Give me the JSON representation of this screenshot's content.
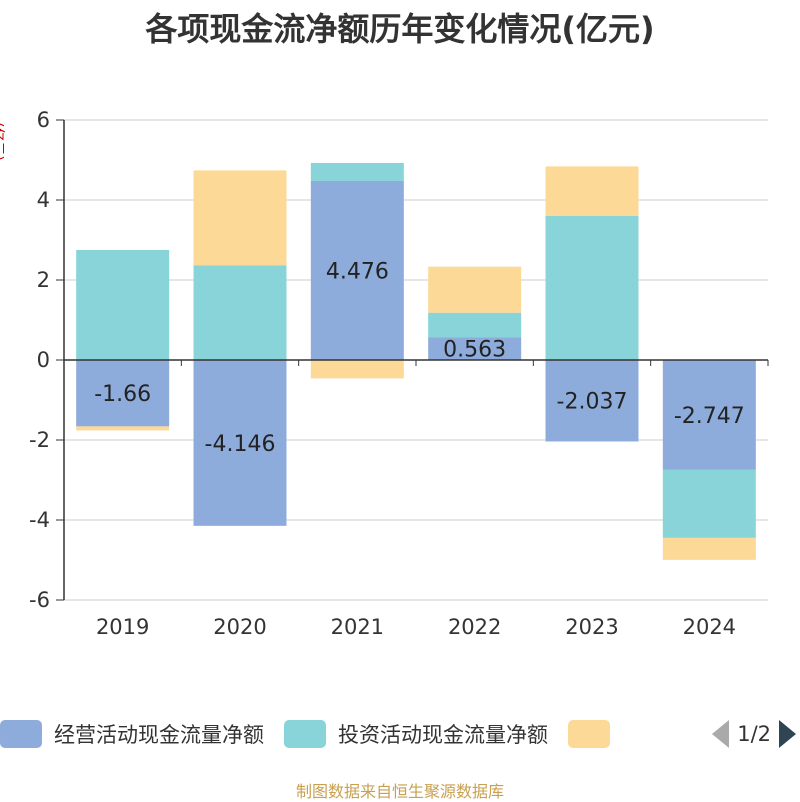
{
  "chart_data": {
    "type": "bar",
    "stacked": true,
    "title": "各项现金流净额历年变化情况(亿元)",
    "ylabel": "(亿元)",
    "categories": [
      "2019",
      "2020",
      "2021",
      "2022",
      "2023",
      "2024"
    ],
    "ylim": [
      -6,
      6
    ],
    "yticks": [
      -6,
      -4,
      -2,
      0,
      2,
      4,
      6
    ],
    "grid": true,
    "legend_position": "bottom",
    "series": [
      {
        "name": "经营活动现金流量净额",
        "color": "#8eacdb",
        "values": [
          -1.66,
          -4.146,
          4.476,
          0.563,
          -2.037,
          -2.747
        ]
      },
      {
        "name": "投资活动现金流量净额",
        "color": "#88d4d8",
        "values": [
          2.75,
          2.37,
          0.45,
          0.62,
          3.6,
          -1.7
        ]
      },
      {
        "name": "",
        "color": "#fdd998",
        "values": [
          -0.1,
          2.37,
          -0.46,
          1.15,
          1.24,
          -0.55
        ]
      }
    ],
    "data_labels": [
      "-1.66",
      "-4.146",
      "4.476",
      "0.563",
      "-2.037",
      "-2.747"
    ]
  },
  "legend": {
    "page_indicator": "1/2"
  },
  "source": "制图数据来自恒生聚源数据库"
}
